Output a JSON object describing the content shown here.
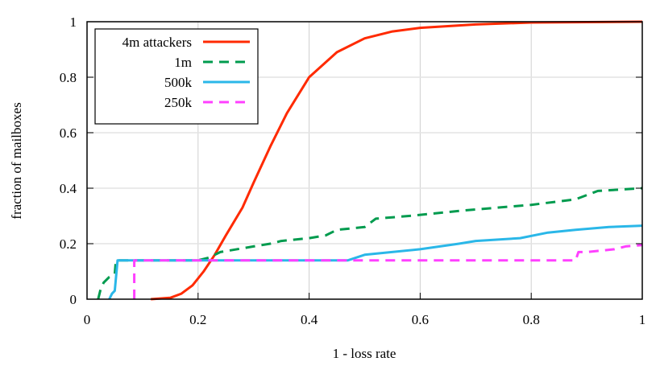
{
  "chart_data": {
    "type": "line",
    "xlabel": "1 - loss rate",
    "ylabel": "fraction of mailboxes",
    "xlim": [
      0,
      1
    ],
    "ylim": [
      0,
      1
    ],
    "xticks": [
      "0",
      "0.2",
      "0.4",
      "0.6",
      "0.8",
      "1"
    ],
    "yticks": [
      "0",
      "0.2",
      "0.4",
      "0.6",
      "0.8",
      "1"
    ],
    "grid": true,
    "legend_position": "top-left",
    "series": [
      {
        "name": "4m attackers",
        "color": "#ff2a00",
        "dash": false,
        "points": [
          [
            0.115,
            0
          ],
          [
            0.15,
            0.005
          ],
          [
            0.17,
            0.02
          ],
          [
            0.19,
            0.05
          ],
          [
            0.21,
            0.1
          ],
          [
            0.23,
            0.16
          ],
          [
            0.25,
            0.23
          ],
          [
            0.28,
            0.33
          ],
          [
            0.3,
            0.42
          ],
          [
            0.33,
            0.55
          ],
          [
            0.36,
            0.67
          ],
          [
            0.4,
            0.8
          ],
          [
            0.45,
            0.89
          ],
          [
            0.5,
            0.94
          ],
          [
            0.55,
            0.965
          ],
          [
            0.6,
            0.978
          ],
          [
            0.7,
            0.99
          ],
          [
            0.8,
            0.997
          ],
          [
            1,
            1
          ]
        ]
      },
      {
        "name": "1m",
        "color": "#009b4e",
        "dash": true,
        "points": [
          [
            0.02,
            0
          ],
          [
            0.025,
            0.04
          ],
          [
            0.03,
            0.06
          ],
          [
            0.04,
            0.08
          ],
          [
            0.05,
            0.09
          ],
          [
            0.052,
            0.14
          ],
          [
            0.2,
            0.14
          ],
          [
            0.22,
            0.15
          ],
          [
            0.24,
            0.17
          ],
          [
            0.3,
            0.19
          ],
          [
            0.33,
            0.2
          ],
          [
            0.35,
            0.21
          ],
          [
            0.4,
            0.22
          ],
          [
            0.43,
            0.23
          ],
          [
            0.45,
            0.25
          ],
          [
            0.5,
            0.26
          ],
          [
            0.52,
            0.29
          ],
          [
            0.58,
            0.3
          ],
          [
            0.68,
            0.32
          ],
          [
            0.8,
            0.34
          ],
          [
            0.88,
            0.36
          ],
          [
            0.92,
            0.39
          ],
          [
            1,
            0.4
          ]
        ]
      },
      {
        "name": "500k",
        "color": "#2ab7e8",
        "dash": false,
        "points": [
          [
            0.04,
            0
          ],
          [
            0.045,
            0.02
          ],
          [
            0.05,
            0.03
          ],
          [
            0.055,
            0.14
          ],
          [
            0.47,
            0.14
          ],
          [
            0.5,
            0.16
          ],
          [
            0.6,
            0.18
          ],
          [
            0.67,
            0.2
          ],
          [
            0.7,
            0.21
          ],
          [
            0.78,
            0.22
          ],
          [
            0.83,
            0.24
          ],
          [
            0.88,
            0.25
          ],
          [
            0.94,
            0.26
          ],
          [
            1,
            0.265
          ]
        ]
      },
      {
        "name": "250k",
        "color": "#ff40ff",
        "dash": true,
        "points": [
          [
            0.085,
            0
          ],
          [
            0.085,
            0.14
          ],
          [
            0.88,
            0.14
          ],
          [
            0.885,
            0.17
          ],
          [
            0.9,
            0.17
          ],
          [
            0.95,
            0.18
          ],
          [
            0.97,
            0.19
          ],
          [
            1,
            0.195
          ]
        ]
      }
    ]
  }
}
